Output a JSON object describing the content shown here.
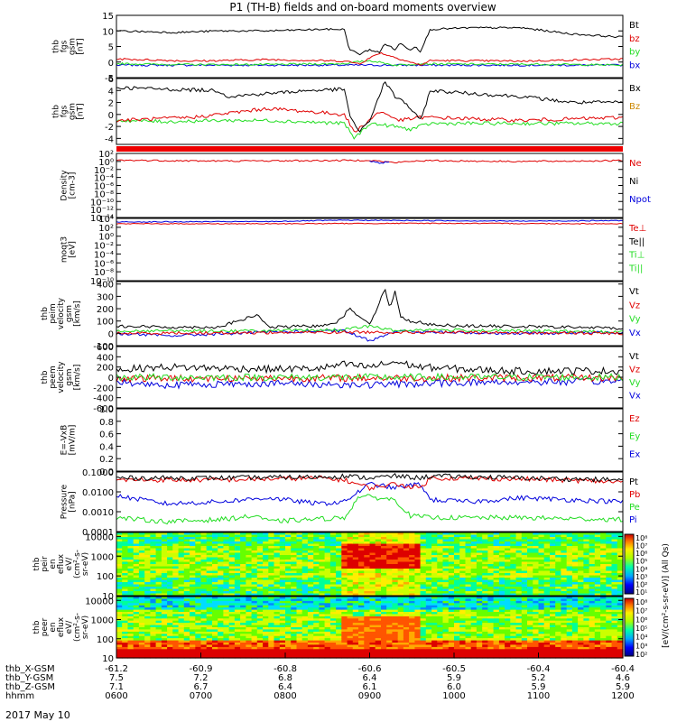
{
  "title": "P1 (TH-B) fields and on-board moments overview",
  "date_label": "2017 May 10",
  "colors": {
    "black": "#000000",
    "red": "#e00000",
    "green": "#22dd22",
    "blue": "#0000dd",
    "orange": "#cc8800"
  },
  "chart_data": [
    {
      "type": "line",
      "ylabel": [
        "thb",
        "fgs",
        "gsm",
        "[nT]"
      ],
      "ylim": [
        -5,
        15
      ],
      "yticks": [
        {
          "v": 15,
          "l": "15"
        },
        {
          "v": 10,
          "l": "10"
        },
        {
          "v": 5,
          "l": "5"
        },
        {
          "v": 0,
          "l": "0"
        },
        {
          "v": -5,
          "l": "-5"
        }
      ],
      "legend": [
        {
          "label": "Bt",
          "color": "black"
        },
        {
          "label": "bz",
          "color": "red"
        },
        {
          "label": "by",
          "color": "green"
        },
        {
          "label": "bx",
          "color": "blue"
        }
      ],
      "series": [
        {
          "name": "bx",
          "color": "blue",
          "x": [
            0,
            1
          ],
          "y": [
            -1,
            -1
          ]
        },
        {
          "name": "by",
          "color": "green",
          "x": [
            0,
            0.12,
            0.3,
            0.45,
            0.5,
            0.55,
            0.6,
            0.62,
            0.72,
            0.85,
            1
          ],
          "y": [
            -0.5,
            -0.8,
            -0.8,
            -0.5,
            0.5,
            -1,
            -0.5,
            -0.6,
            -0.7,
            -0.7,
            -1
          ]
        },
        {
          "name": "bz",
          "color": "red",
          "x": [
            0,
            0.15,
            0.3,
            0.45,
            0.48,
            0.52,
            0.56,
            0.6,
            0.62,
            0.8,
            1
          ],
          "y": [
            1,
            0.3,
            0.8,
            0.3,
            -0.5,
            3,
            1,
            -1,
            0.5,
            0.3,
            1
          ]
        },
        {
          "name": "Bt",
          "color": "black",
          "x": [
            0,
            0.12,
            0.2,
            0.3,
            0.4,
            0.45,
            0.46,
            0.48,
            0.5,
            0.52,
            0.53,
            0.55,
            0.56,
            0.58,
            0.59,
            0.6,
            0.62,
            0.7,
            0.8,
            0.85,
            0.9,
            1
          ],
          "y": [
            10,
            9.5,
            10,
            10,
            10.5,
            10.5,
            4,
            2.5,
            4,
            3,
            6,
            4,
            6,
            4,
            5,
            3.5,
            10.5,
            11,
            11,
            10,
            9,
            8
          ]
        }
      ]
    },
    {
      "type": "line",
      "ylabel": [
        "thb",
        "fgs",
        "gsm",
        "[nT]"
      ],
      "ylim": [
        -5,
        6
      ],
      "yticks": [
        {
          "v": 6,
          "l": "6"
        },
        {
          "v": 4,
          "l": "4"
        },
        {
          "v": 2,
          "l": "2"
        },
        {
          "v": 0,
          "l": "0"
        },
        {
          "v": -2,
          "l": "-2"
        },
        {
          "v": -4,
          "l": "-4"
        }
      ],
      "legend": [
        {
          "label": "Bx",
          "color": "black"
        },
        {
          "label": "Bz",
          "color": "orange"
        }
      ],
      "series": [
        {
          "name": "green",
          "color": "green",
          "x": [
            0,
            0.1,
            0.2,
            0.3,
            0.45,
            0.47,
            0.5,
            0.55,
            0.58,
            0.6,
            0.62,
            0.8,
            1
          ],
          "y": [
            -1,
            -1.2,
            -1,
            -1,
            -1.5,
            -4,
            -1.5,
            -2,
            -2.5,
            -2,
            -1.5,
            -1.5,
            -1.5
          ]
        },
        {
          "name": "red",
          "color": "red",
          "x": [
            0,
            0.15,
            0.3,
            0.45,
            0.47,
            0.52,
            0.56,
            0.6,
            0.62,
            0.8,
            1
          ],
          "y": [
            -1,
            -0.5,
            1,
            0,
            -3,
            0.5,
            -1,
            -0.5,
            -0.5,
            -1,
            -0.5
          ]
        },
        {
          "name": "Bx",
          "color": "black",
          "x": [
            0,
            0.1,
            0.2,
            0.22,
            0.3,
            0.38,
            0.45,
            0.46,
            0.48,
            0.5,
            0.53,
            0.55,
            0.57,
            0.6,
            0.62,
            0.7,
            0.8,
            0.9,
            1
          ],
          "y": [
            4.5,
            4.2,
            4,
            3,
            3.5,
            4,
            4.2,
            0,
            -3,
            -1,
            5.5,
            3,
            2,
            -1,
            4,
            3.5,
            3,
            2,
            2
          ]
        }
      ]
    },
    {
      "type": "line",
      "ylabel": [
        "Density",
        "[cm-3]"
      ],
      "ylim_log": [
        -14,
        2
      ],
      "yticks": [
        {
          "v": 2,
          "l": "10²"
        },
        {
          "v": 0,
          "l": "10⁰"
        },
        {
          "v": -2,
          "l": "10⁻²"
        },
        {
          "v": -4,
          "l": "10⁻⁴"
        },
        {
          "v": -6,
          "l": "10⁻⁶"
        },
        {
          "v": -8,
          "l": "10⁻⁸"
        },
        {
          "v": -10,
          "l": "10⁻¹⁰"
        },
        {
          "v": -12,
          "l": "10⁻¹²"
        },
        {
          "v": -14,
          "l": "10⁻¹⁴"
        }
      ],
      "legend": [
        {
          "label": "Ne",
          "color": "red"
        },
        {
          "label": "Ni",
          "color": "black"
        },
        {
          "label": "Npot",
          "color": "blue"
        }
      ],
      "series": [
        {
          "name": "Ne",
          "color": "red",
          "x": [
            0,
            0.2,
            0.4,
            0.5,
            0.55,
            0.6,
            0.8,
            1
          ],
          "y": [
            0.3,
            0.1,
            0.2,
            0.3,
            -0.3,
            0.2,
            0,
            0.2
          ]
        },
        {
          "name": "Npot",
          "color": "blue",
          "x": [
            0.5,
            0.52,
            0.54
          ],
          "y": [
            0.1,
            -0.5,
            0.1
          ]
        }
      ]
    },
    {
      "type": "line",
      "ylabel": [
        "moqt3",
        "[eV]"
      ],
      "ylim_log": [
        -10,
        4
      ],
      "yticks": [
        {
          "v": 4,
          "l": "10⁴"
        },
        {
          "v": 2,
          "l": "10²"
        },
        {
          "v": 0,
          "l": "10⁰"
        },
        {
          "v": -2,
          "l": "10⁻²"
        },
        {
          "v": -4,
          "l": "10⁻⁴"
        },
        {
          "v": -6,
          "l": "10⁻⁶"
        },
        {
          "v": -8,
          "l": "10⁻⁸"
        },
        {
          "v": -10,
          "l": "10⁻¹⁰"
        }
      ],
      "legend": [
        {
          "label": "Te⊥",
          "color": "red"
        },
        {
          "label": "Te||",
          "color": "black"
        },
        {
          "label": "Ti⊥",
          "color": "green"
        },
        {
          "label": "Ti||",
          "color": "green"
        }
      ],
      "series": [
        {
          "name": "Ti",
          "color": "blue",
          "x": [
            0,
            0.3,
            0.45,
            0.62,
            0.8,
            1
          ],
          "y": [
            3.2,
            3.3,
            3.6,
            3.5,
            3.4,
            3.5
          ]
        },
        {
          "name": "Te",
          "color": "red",
          "x": [
            0,
            0.3,
            0.6,
            1
          ],
          "y": [
            2.8,
            2.8,
            2.9,
            2.8
          ]
        }
      ]
    },
    {
      "type": "line",
      "ylabel": [
        "thb",
        "peim",
        "velocity",
        "gsm",
        "[km/s]"
      ],
      "ylim": [
        -100,
        420
      ],
      "yticks": [
        {
          "v": 400,
          "l": "400"
        },
        {
          "v": 300,
          "l": "300"
        },
        {
          "v": 200,
          "l": "200"
        },
        {
          "v": 100,
          "l": "100"
        },
        {
          "v": 0,
          "l": "0"
        },
        {
          "v": -100,
          "l": "-100"
        }
      ],
      "legend": [
        {
          "label": "Vt",
          "color": "black"
        },
        {
          "label": "Vz",
          "color": "red"
        },
        {
          "label": "Vy",
          "color": "green"
        },
        {
          "label": "Vx",
          "color": "blue"
        }
      ],
      "series": [
        {
          "name": "Vx",
          "color": "blue",
          "x": [
            0,
            0.1,
            0.3,
            0.45,
            0.5,
            0.55,
            0.6,
            0.8,
            1
          ],
          "y": [
            0,
            -20,
            10,
            20,
            -60,
            20,
            10,
            0,
            10
          ]
        },
        {
          "name": "Vy",
          "color": "green",
          "x": [
            0,
            0.3,
            0.45,
            0.5,
            0.55,
            0.6,
            0.8,
            1
          ],
          "y": [
            20,
            20,
            30,
            60,
            20,
            30,
            20,
            10
          ]
        },
        {
          "name": "Vz",
          "color": "red",
          "x": [
            0,
            0.5,
            1
          ],
          "y": [
            0,
            10,
            0
          ]
        },
        {
          "name": "Vt",
          "color": "black",
          "x": [
            0,
            0.1,
            0.2,
            0.28,
            0.3,
            0.4,
            0.44,
            0.46,
            0.5,
            0.52,
            0.53,
            0.54,
            0.55,
            0.56,
            0.57,
            0.58,
            0.6,
            0.62,
            0.7,
            0.8,
            0.9,
            1
          ],
          "y": [
            60,
            50,
            50,
            150,
            50,
            60,
            100,
            200,
            80,
            250,
            370,
            200,
            350,
            150,
            100,
            100,
            90,
            70,
            60,
            55,
            50,
            40
          ]
        }
      ]
    },
    {
      "type": "line",
      "ylabel": [
        "thb",
        "peem",
        "velocity",
        "gsm",
        "[km/s]"
      ],
      "ylim": [
        -600,
        600
      ],
      "yticks": [
        {
          "v": 600,
          "l": "600"
        },
        {
          "v": 400,
          "l": "400"
        },
        {
          "v": 200,
          "l": "200"
        },
        {
          "v": 0,
          "l": "0"
        },
        {
          "v": -200,
          "l": "-200"
        },
        {
          "v": -400,
          "l": "-400"
        },
        {
          "v": -600,
          "l": "-600"
        }
      ],
      "legend": [
        {
          "label": "Vt",
          "color": "black"
        },
        {
          "label": "Vz",
          "color": "red"
        },
        {
          "label": "Vy",
          "color": "green"
        },
        {
          "label": "Vx",
          "color": "blue"
        }
      ],
      "series": [
        {
          "name": "Vx",
          "color": "blue",
          "x": [
            0,
            0.1,
            0.3,
            0.5,
            0.7,
            1
          ],
          "y": [
            -100,
            -150,
            -120,
            -150,
            -100,
            -80
          ]
        },
        {
          "name": "Vz",
          "color": "red",
          "x": [
            0,
            1
          ],
          "y": [
            -20,
            -10
          ]
        },
        {
          "name": "Vy",
          "color": "green",
          "x": [
            0,
            1
          ],
          "y": [
            0,
            0
          ]
        },
        {
          "name": "Vt",
          "color": "black",
          "x": [
            0,
            0.1,
            0.2,
            0.3,
            0.4,
            0.45,
            0.5,
            0.55,
            0.6,
            0.7,
            0.8,
            0.9,
            1
          ],
          "y": [
            150,
            200,
            180,
            160,
            170,
            250,
            200,
            300,
            200,
            150,
            120,
            130,
            120
          ]
        }
      ]
    },
    {
      "type": "line",
      "ylabel": [
        "E=-VxB",
        "[mV/m]"
      ],
      "ylim": [
        0,
        1
      ],
      "yticks": [
        {
          "v": 1,
          "l": "1.0"
        },
        {
          "v": 0.8,
          "l": "0.8"
        },
        {
          "v": 0.6,
          "l": "0.6"
        },
        {
          "v": 0.4,
          "l": "0.4"
        },
        {
          "v": 0.2,
          "l": "0.2"
        },
        {
          "v": 0,
          "l": "0.0"
        }
      ],
      "legend": [
        {
          "label": "Ez",
          "color": "red"
        },
        {
          "label": "Ey",
          "color": "green"
        },
        {
          "label": "Ex",
          "color": "blue"
        }
      ],
      "series": []
    },
    {
      "type": "line",
      "ylabel": [
        "Pressure",
        "[nPa]"
      ],
      "ylim_log": [
        -4,
        -1
      ],
      "yticks": [
        {
          "v": -1,
          "l": "0.1000"
        },
        {
          "v": -2,
          "l": "0.0100"
        },
        {
          "v": -3,
          "l": "0.0010"
        },
        {
          "v": -4,
          "l": "0.0001"
        }
      ],
      "legend": [
        {
          "label": "Pt",
          "color": "black"
        },
        {
          "label": "Pb",
          "color": "red"
        },
        {
          "label": "Pe",
          "color": "green"
        },
        {
          "label": "Pi",
          "color": "blue"
        }
      ],
      "series": [
        {
          "name": "Pe",
          "color": "green",
          "x": [
            0,
            0.1,
            0.2,
            0.28,
            0.3,
            0.45,
            0.48,
            0.55,
            0.58,
            0.62,
            0.7,
            0.8,
            1
          ],
          "y": [
            -3.3,
            -3.5,
            -3.4,
            -3.2,
            -3.5,
            -3.3,
            -2.2,
            -2.4,
            -3.2,
            -3.3,
            -3.3,
            -3.3,
            -3.4
          ]
        },
        {
          "name": "Pi",
          "color": "blue",
          "x": [
            0,
            0.1,
            0.2,
            0.3,
            0.4,
            0.45,
            0.5,
            0.55,
            0.6,
            0.62,
            0.7,
            0.8,
            1
          ],
          "y": [
            -2.2,
            -2.6,
            -2.5,
            -2.3,
            -2.6,
            -2.5,
            -1.6,
            -1.8,
            -1.6,
            -2.4,
            -2.5,
            -2.3,
            -2.5
          ]
        },
        {
          "name": "Pb",
          "color": "red",
          "x": [
            0,
            0.2,
            0.4,
            0.45,
            0.5,
            0.55,
            0.6,
            0.62,
            0.8,
            1
          ],
          "y": [
            -1.4,
            -1.4,
            -1.3,
            -1.4,
            -1.8,
            -1.6,
            -1.8,
            -1.3,
            -1.35,
            -1.5
          ]
        },
        {
          "name": "Pt",
          "color": "black",
          "x": [
            0,
            0.2,
            0.4,
            0.45,
            0.5,
            0.55,
            0.6,
            0.62,
            0.8,
            1
          ],
          "y": [
            -1.3,
            -1.3,
            -1.25,
            -1.2,
            -1.3,
            -1.2,
            -1.3,
            -1.2,
            -1.3,
            -1.4
          ]
        }
      ]
    },
    {
      "type": "heatmap",
      "ylabel": [
        "thb",
        "peir",
        "en",
        "eflux",
        "eV/",
        "(cm²-s-",
        "sr-eV)"
      ],
      "ylim_log": [
        1,
        4.2
      ],
      "yticks": [
        {
          "v": 4,
          "l": "10000"
        },
        {
          "v": 3,
          "l": "1000"
        },
        {
          "v": 2,
          "l": "100"
        },
        {
          "v": 1,
          "l": "10"
        }
      ]
    },
    {
      "type": "heatmap",
      "ylabel": [
        "thb",
        "peer",
        "en",
        "eflux",
        "eV/",
        "(cm²-s-",
        "sr-eV)"
      ],
      "ylim_log": [
        1,
        4.2
      ],
      "yticks": [
        {
          "v": 4,
          "l": "10000"
        },
        {
          "v": 3,
          "l": "1000"
        },
        {
          "v": 2,
          "l": "100"
        },
        {
          "v": 1,
          "l": "10"
        }
      ]
    }
  ],
  "colorbar1_ticks": [
    "10⁸",
    "10⁷",
    "10⁶",
    "10⁵",
    "10⁴",
    "10³",
    "10²",
    "10¹"
  ],
  "colorbar2_ticks": [
    "10⁸",
    "10⁷",
    "10⁶",
    "10⁵",
    "10⁴",
    "10³",
    "10²"
  ],
  "colorbar_label": "[eV/(cm²-s-sr-eV)] (All Qs)",
  "xaxis": {
    "rows": [
      {
        "label": "thb_X-GSM",
        "values": [
          "-61.2",
          "-60.9",
          "-60.8",
          "-60.6",
          "-60.5",
          "-60.4",
          "-60.4"
        ]
      },
      {
        "label": "thb_Y-GSM",
        "values": [
          "7.5",
          "7.2",
          "6.8",
          "6.4",
          "5.9",
          "5.2",
          "4.6"
        ]
      },
      {
        "label": "thb_Z-GSM",
        "values": [
          "7.1",
          "6.7",
          "6.4",
          "6.1",
          "6.0",
          "5.9",
          "5.9"
        ]
      },
      {
        "label": "hhmm",
        "values": [
          "0600",
          "0700",
          "0800",
          "0900",
          "1000",
          "1100",
          "1200"
        ]
      }
    ]
  }
}
